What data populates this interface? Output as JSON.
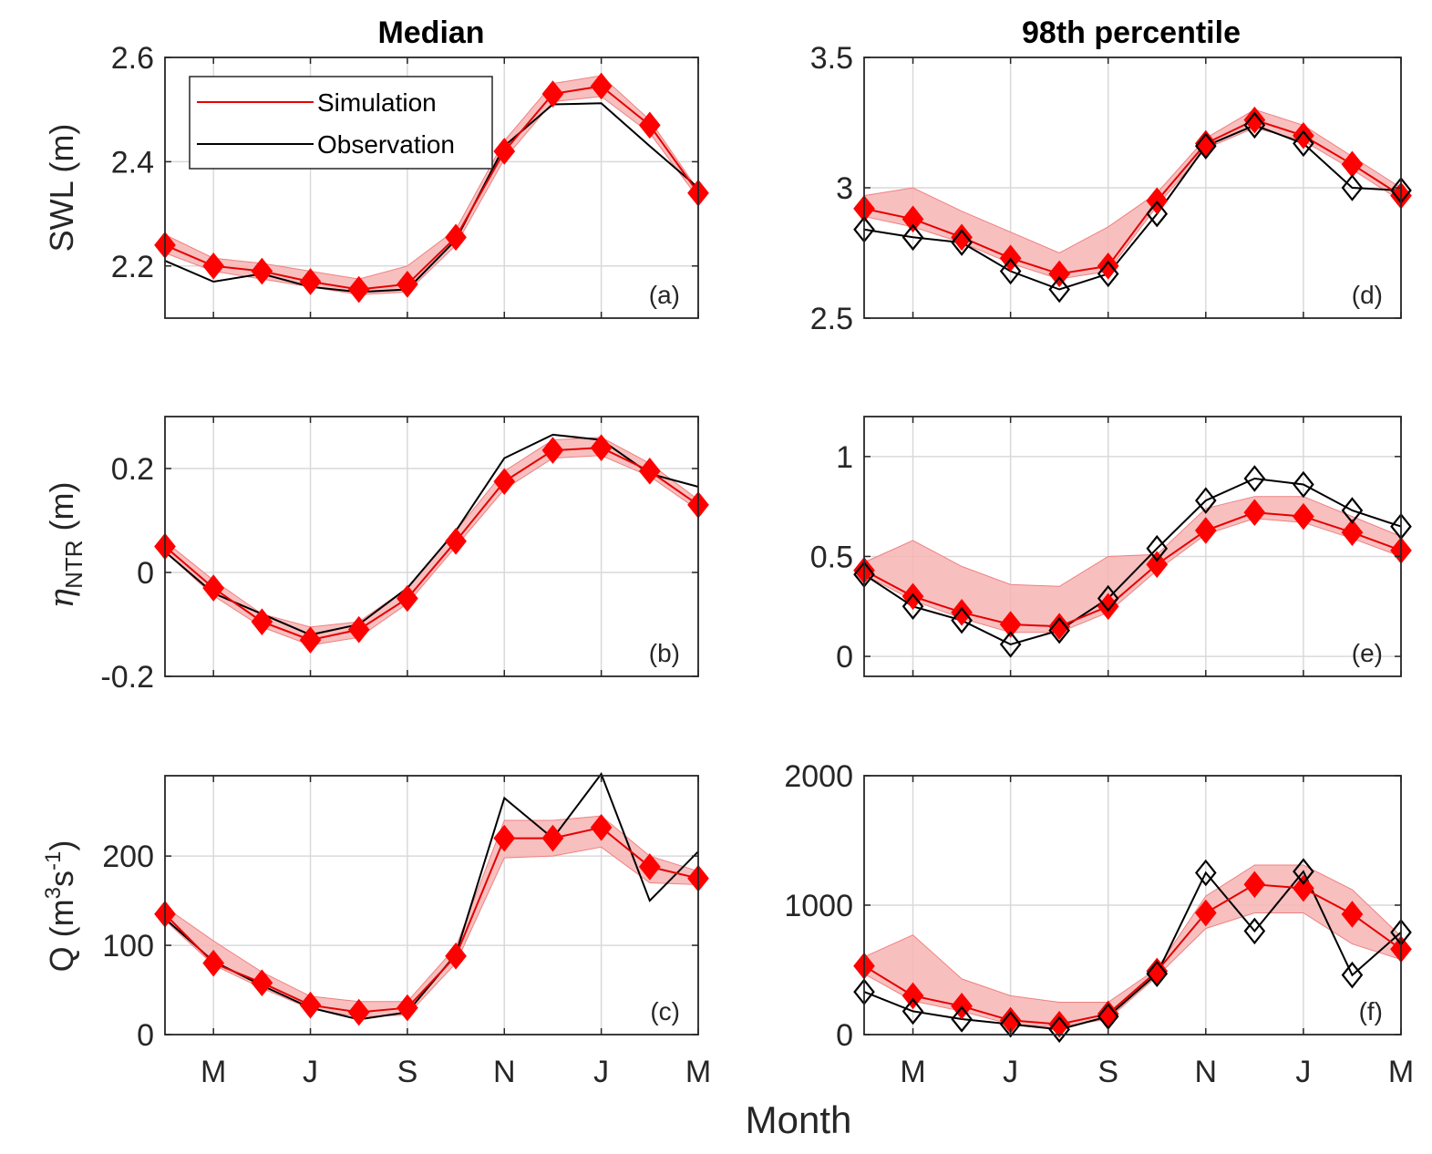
{
  "figure": {
    "column_titles": [
      "Median",
      "98th percentile"
    ],
    "xlabel": "Month",
    "legend": [
      {
        "label": "Simulation",
        "color": "#e60000"
      },
      {
        "label": "Observation",
        "color": "#000000"
      }
    ],
    "colors": {
      "simulation": "#ff0000",
      "band": "#f7b4b4",
      "observation": "#000000",
      "grid": "#d9d9d9"
    }
  },
  "chart_data": [
    {
      "id": "a",
      "type": "line",
      "panel_label": "(a)",
      "column": "Median",
      "ylabel": "SWL (m)",
      "x_ticks": [
        2,
        4,
        6,
        8,
        10,
        12
      ],
      "x_tick_labels": [
        "M",
        "J",
        "S",
        "N",
        "J",
        "M"
      ],
      "xlim": [
        1,
        12
      ],
      "ylim": [
        2.1,
        2.6
      ],
      "y_ticks": [
        2.2,
        2.4,
        2.6
      ],
      "y_tick_labels": [
        "2.2",
        "2.4",
        "2.6"
      ],
      "x": [
        1,
        2,
        3,
        4,
        5,
        6,
        7,
        8,
        9,
        10,
        11,
        12
      ],
      "simulation": [
        2.24,
        2.2,
        2.19,
        2.17,
        2.155,
        2.165,
        2.255,
        2.42,
        2.53,
        2.545,
        2.47,
        2.34
      ],
      "band_upper": [
        2.26,
        2.215,
        2.205,
        2.19,
        2.175,
        2.2,
        2.27,
        2.44,
        2.55,
        2.565,
        2.48,
        2.345
      ],
      "band_lower": [
        2.225,
        2.19,
        2.175,
        2.16,
        2.145,
        2.15,
        2.24,
        2.405,
        2.515,
        2.525,
        2.455,
        2.33
      ],
      "observation": [
        2.21,
        2.17,
        2.185,
        2.16,
        2.15,
        2.155,
        2.25,
        2.43,
        2.51,
        2.512,
        2.43,
        2.35
      ],
      "obs_markers": false
    },
    {
      "id": "b",
      "type": "line",
      "panel_label": "(b)",
      "column": "Median",
      "ylabel": "η_NTR (m)",
      "x_ticks": [
        2,
        4,
        6,
        8,
        10,
        12
      ],
      "x_tick_labels": [
        "M",
        "J",
        "S",
        "N",
        "J",
        "M"
      ],
      "xlim": [
        1,
        12
      ],
      "ylim": [
        -0.2,
        0.3
      ],
      "y_ticks": [
        -0.2,
        0,
        0.2
      ],
      "y_tick_labels": [
        "-0.2",
        "0",
        "0.2"
      ],
      "x": [
        1,
        2,
        3,
        4,
        5,
        6,
        7,
        8,
        9,
        10,
        11,
        12
      ],
      "simulation": [
        0.05,
        -0.03,
        -0.095,
        -0.13,
        -0.11,
        -0.05,
        0.06,
        0.175,
        0.235,
        0.24,
        0.195,
        0.13
      ],
      "band_upper": [
        0.06,
        -0.015,
        -0.08,
        -0.105,
        -0.095,
        -0.03,
        0.08,
        0.195,
        0.255,
        0.26,
        0.21,
        0.14
      ],
      "band_lower": [
        0.04,
        -0.045,
        -0.105,
        -0.14,
        -0.125,
        -0.06,
        0.05,
        0.16,
        0.22,
        0.225,
        0.185,
        0.12
      ],
      "observation": [
        0.04,
        -0.04,
        -0.08,
        -0.12,
        -0.1,
        -0.03,
        0.08,
        0.22,
        0.265,
        0.255,
        0.19,
        0.165
      ],
      "obs_markers": false
    },
    {
      "id": "c",
      "type": "line",
      "panel_label": "(c)",
      "column": "Median",
      "ylabel": "Q (m³s⁻¹)",
      "x_ticks": [
        2,
        4,
        6,
        8,
        10,
        12
      ],
      "x_tick_labels": [
        "M",
        "J",
        "S",
        "N",
        "J",
        "M"
      ],
      "xlim": [
        1,
        12
      ],
      "ylim": [
        0,
        290
      ],
      "y_ticks": [
        0,
        100,
        200
      ],
      "y_tick_labels": [
        "0",
        "100",
        "200"
      ],
      "x": [
        1,
        2,
        3,
        4,
        5,
        6,
        7,
        8,
        9,
        10,
        11,
        12
      ],
      "simulation": [
        135,
        80,
        58,
        33,
        25,
        30,
        88,
        220,
        220,
        232,
        188,
        175
      ],
      "band_upper": [
        143,
        105,
        70,
        43,
        37,
        37,
        98,
        240,
        240,
        245,
        200,
        183
      ],
      "band_lower": [
        128,
        78,
        52,
        29,
        20,
        22,
        80,
        198,
        200,
        210,
        170,
        168
      ],
      "observation": [
        130,
        82,
        55,
        30,
        17,
        25,
        90,
        265,
        220,
        292,
        150,
        205
      ],
      "obs_markers": false
    },
    {
      "id": "d",
      "type": "line",
      "panel_label": "(d)",
      "column": "98th percentile",
      "ylabel": "",
      "x_ticks": [
        2,
        4,
        6,
        8,
        10,
        12
      ],
      "x_tick_labels": [
        "M",
        "J",
        "S",
        "N",
        "J",
        "M"
      ],
      "xlim": [
        1,
        12
      ],
      "ylim": [
        2.5,
        3.5
      ],
      "y_ticks": [
        2.5,
        3,
        3.5
      ],
      "y_tick_labels": [
        "2.5",
        "3",
        "3.5"
      ],
      "x": [
        1,
        2,
        3,
        4,
        5,
        6,
        7,
        8,
        9,
        10,
        11,
        12
      ],
      "simulation": [
        2.92,
        2.88,
        2.81,
        2.73,
        2.67,
        2.7,
        2.95,
        3.17,
        3.26,
        3.2,
        3.09,
        2.97
      ],
      "band_upper": [
        2.97,
        3.0,
        2.91,
        2.83,
        2.75,
        2.85,
        2.98,
        3.19,
        3.3,
        3.24,
        3.12,
        3.0
      ],
      "band_lower": [
        2.89,
        2.85,
        2.79,
        2.71,
        2.65,
        2.68,
        2.93,
        3.15,
        3.23,
        3.18,
        3.07,
        2.95
      ],
      "observation": [
        2.84,
        2.81,
        2.79,
        2.68,
        2.61,
        2.67,
        2.9,
        3.16,
        3.24,
        3.17,
        3.0,
        2.99
      ],
      "obs_markers": true
    },
    {
      "id": "e",
      "type": "line",
      "panel_label": "(e)",
      "column": "98th percentile",
      "ylabel": "",
      "x_ticks": [
        2,
        4,
        6,
        8,
        10,
        12
      ],
      "x_tick_labels": [
        "M",
        "J",
        "S",
        "N",
        "J",
        "M"
      ],
      "xlim": [
        1,
        12
      ],
      "ylim": [
        -0.1,
        1.2
      ],
      "y_ticks": [
        0,
        0.5,
        1
      ],
      "y_tick_labels": [
        "0",
        "0.5",
        "1"
      ],
      "x": [
        1,
        2,
        3,
        4,
        5,
        6,
        7,
        8,
        9,
        10,
        11,
        12
      ],
      "simulation": [
        0.43,
        0.3,
        0.22,
        0.16,
        0.15,
        0.25,
        0.46,
        0.63,
        0.72,
        0.7,
        0.62,
        0.53
      ],
      "band_upper": [
        0.47,
        0.58,
        0.45,
        0.36,
        0.35,
        0.5,
        0.51,
        0.74,
        0.8,
        0.8,
        0.7,
        0.6
      ],
      "band_lower": [
        0.41,
        0.28,
        0.19,
        0.12,
        0.12,
        0.22,
        0.43,
        0.61,
        0.69,
        0.67,
        0.59,
        0.5
      ],
      "observation": [
        0.41,
        0.25,
        0.18,
        0.06,
        0.13,
        0.29,
        0.54,
        0.78,
        0.89,
        0.86,
        0.73,
        0.65
      ],
      "obs_markers": true
    },
    {
      "id": "f",
      "type": "line",
      "panel_label": "(f)",
      "column": "98th percentile",
      "ylabel": "",
      "x_ticks": [
        2,
        4,
        6,
        8,
        10,
        12
      ],
      "x_tick_labels": [
        "M",
        "J",
        "S",
        "N",
        "J",
        "M"
      ],
      "xlim": [
        1,
        12
      ],
      "ylim": [
        0,
        2000
      ],
      "y_ticks": [
        0,
        1000,
        2000
      ],
      "y_tick_labels": [
        "0",
        "1000",
        "2000"
      ],
      "x": [
        1,
        2,
        3,
        4,
        5,
        6,
        7,
        8,
        9,
        10,
        11,
        12
      ],
      "simulation": [
        530,
        300,
        220,
        110,
        80,
        160,
        490,
        940,
        1160,
        1130,
        930,
        660
      ],
      "band_upper": [
        600,
        770,
        430,
        300,
        250,
        250,
        510,
        1070,
        1310,
        1310,
        1120,
        760
      ],
      "band_lower": [
        470,
        260,
        180,
        80,
        60,
        120,
        450,
        820,
        940,
        940,
        700,
        580
      ],
      "observation": [
        330,
        180,
        120,
        80,
        40,
        140,
        470,
        1250,
        800,
        1260,
        460,
        790
      ],
      "obs_markers": true
    }
  ]
}
